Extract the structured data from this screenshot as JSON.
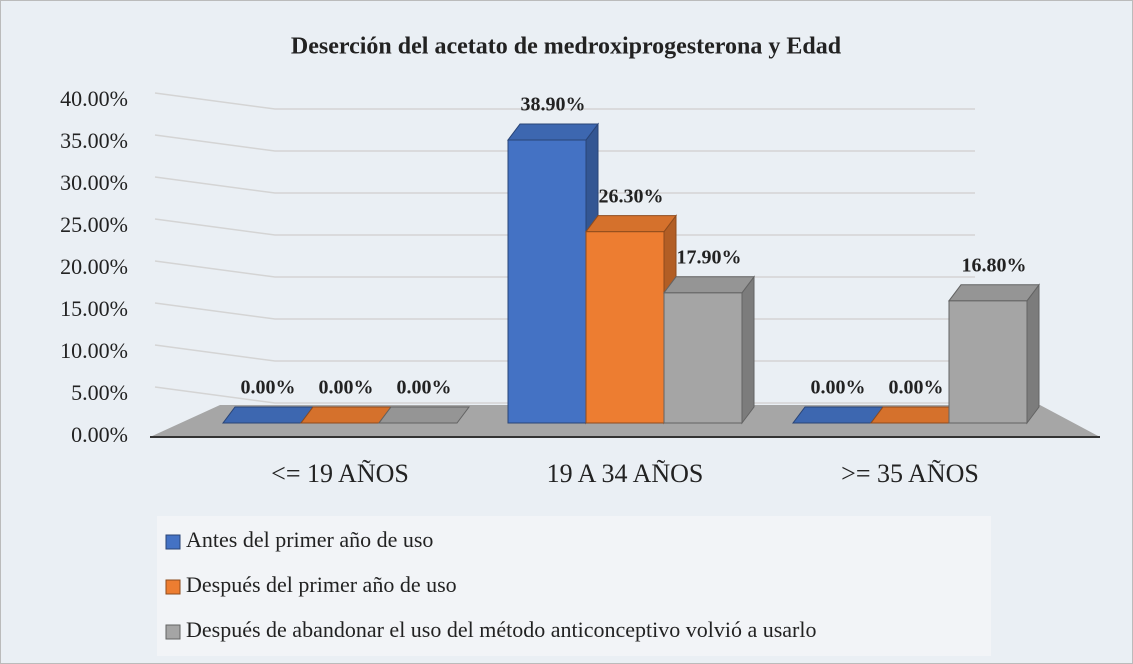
{
  "chart_data": {
    "type": "bar3d",
    "title": "Deserción del acetato de medroxiprogesterona y Edad",
    "categories": [
      "<= 19 AÑOS",
      "19 A 34 AÑOS",
      ">= 35 AÑOS"
    ],
    "series": [
      {
        "name": "Antes del primer año de uso",
        "color": "#4472c4",
        "values": [
          0,
          38.9,
          0
        ],
        "value_labels": [
          "0.00%",
          "38.90%",
          "0.00%"
        ]
      },
      {
        "name": "Después del primer año de uso",
        "color": "#ed7d31",
        "values": [
          0,
          26.3,
          0
        ],
        "value_labels": [
          "0.00%",
          "26.30%",
          "0.00%"
        ]
      },
      {
        "name": "Después de abandonar el uso del método anticonceptivo volvió a usarlo",
        "color": "#a5a5a5",
        "values": [
          0,
          17.9,
          16.8
        ],
        "value_labels": [
          "0.00%",
          "17.90%",
          "16.80%"
        ]
      }
    ],
    "ylim": [
      0,
      40
    ],
    "yticks": [
      {
        "value": 0,
        "label": "0.00%"
      },
      {
        "value": 5,
        "label": "5.00%"
      },
      {
        "value": 10,
        "label": "10.00%"
      },
      {
        "value": 15,
        "label": "15.00%"
      },
      {
        "value": 20,
        "label": "20.00%"
      },
      {
        "value": 25,
        "label": "25.00%"
      },
      {
        "value": 30,
        "label": "30.00%"
      },
      {
        "value": 35,
        "label": "35.00%"
      },
      {
        "value": 40,
        "label": "40.00%"
      }
    ],
    "grid": true,
    "legend": "bottom"
  }
}
